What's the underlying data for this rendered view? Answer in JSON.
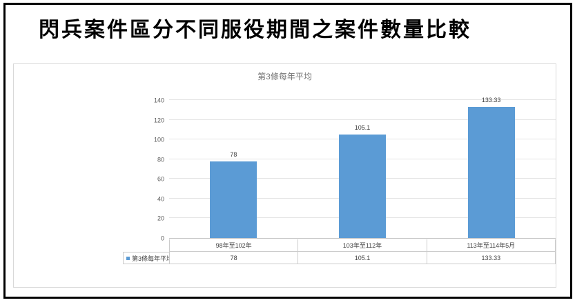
{
  "page": {
    "title": "閃兵案件區分不同服役期間之案件數量比較"
  },
  "chart_data": {
    "type": "bar",
    "title": "第3條每年平均",
    "categories": [
      "98年至102年",
      "103年至112年",
      "113年至114年5月"
    ],
    "series": [
      {
        "name": "第3條每年平均",
        "values": [
          78,
          105.1,
          133.33
        ]
      }
    ],
    "value_labels": [
      "78",
      "105.1",
      "133.33"
    ],
    "xlabel": "",
    "ylabel": "",
    "ylim": [
      0,
      140
    ],
    "ytick_step": 20,
    "yticks": [
      0,
      20,
      40,
      60,
      80,
      100,
      120,
      140
    ],
    "grid": true,
    "data_labels_shown": true,
    "data_table_shown": true,
    "legend_position": "data-table-left",
    "colors": {
      "bar": "#5b9bd5",
      "gridline": "#e4e4e4",
      "axis_line": "#c6c6c6",
      "axis_text": "#595959",
      "chart_title_text": "#757575",
      "data_label_text": "#3f3f3f",
      "table_border": "#cccccc",
      "panel_border": "#d9d9d9",
      "outer_border": "#000000"
    }
  }
}
